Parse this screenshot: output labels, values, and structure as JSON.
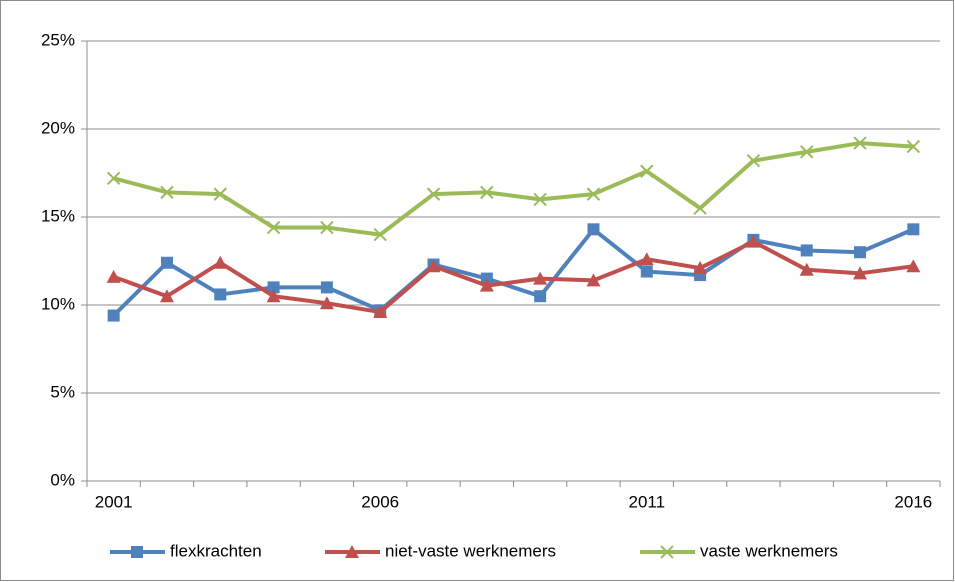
{
  "chart_data": {
    "type": "line",
    "categories": [
      "2001",
      null,
      null,
      null,
      null,
      "2006",
      null,
      null,
      null,
      null,
      "2011",
      null,
      null,
      null,
      null,
      "2016"
    ],
    "series": [
      {
        "name": "flexkrachten",
        "color": "#4f81bd",
        "marker": "square",
        "values": [
          9.4,
          12.4,
          10.6,
          11.0,
          11.0,
          9.7,
          12.3,
          11.5,
          10.5,
          14.3,
          11.9,
          11.7,
          13.7,
          13.1,
          13.0,
          14.3
        ]
      },
      {
        "name": "niet-vaste werknemers",
        "color": "#c0504d",
        "marker": "triangle",
        "values": [
          11.6,
          10.5,
          12.4,
          10.5,
          10.1,
          9.6,
          12.2,
          11.1,
          11.5,
          11.4,
          12.6,
          12.1,
          13.6,
          12.0,
          11.8,
          12.2
        ]
      },
      {
        "name": "vaste werknemers",
        "color": "#9bbb59",
        "marker": "x",
        "values": [
          17.2,
          16.4,
          16.3,
          14.4,
          14.4,
          14.0,
          16.3,
          16.4,
          16.0,
          16.3,
          17.6,
          15.5,
          18.2,
          18.7,
          19.2,
          19.0
        ]
      }
    ],
    "ylim": [
      0,
      25
    ],
    "yticks": [
      {
        "value": 0,
        "label": "0%"
      },
      {
        "value": 5,
        "label": "5%"
      },
      {
        "value": 10,
        "label": "10%"
      },
      {
        "value": 15,
        "label": "15%"
      },
      {
        "value": 20,
        "label": "20%"
      },
      {
        "value": 25,
        "label": "25%"
      }
    ],
    "grid": true,
    "legend": "bottom"
  }
}
